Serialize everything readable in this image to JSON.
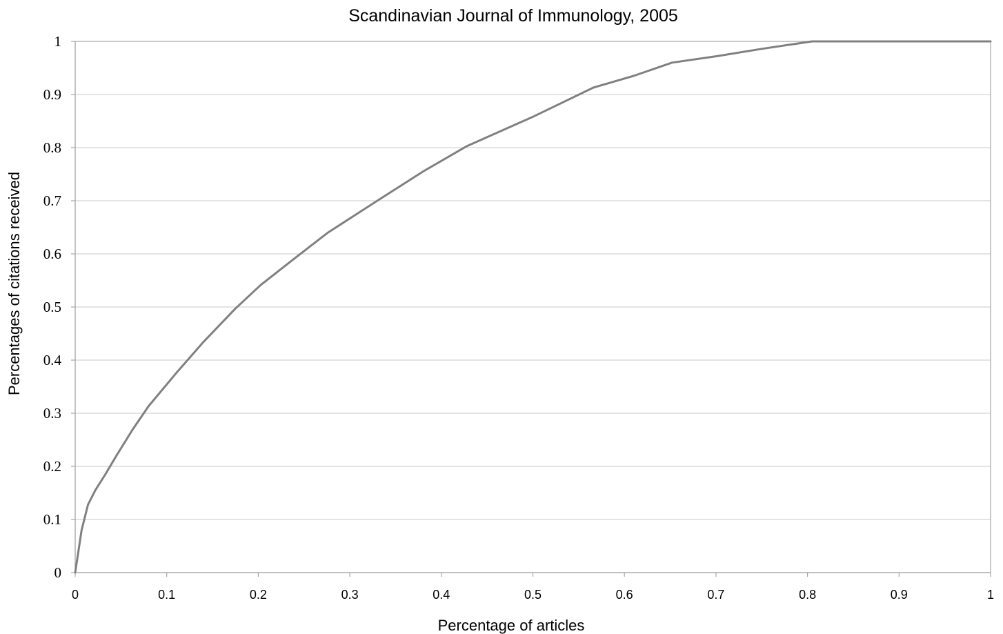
{
  "chart_data": {
    "type": "line",
    "title": "Scandinavian Journal of Immunology, 2005",
    "xlabel": "Percentage of articles",
    "ylabel": "Percentages of citations received",
    "xlim": [
      0,
      1
    ],
    "ylim": [
      0,
      1
    ],
    "x_ticks": [
      "0",
      "0.1",
      "0.2",
      "0.3",
      "0.4",
      "0.5",
      "0.6",
      "0.7",
      "0.8",
      "0.9",
      "1"
    ],
    "y_ticks": [
      "0",
      "0.1",
      "0.2",
      "0.3",
      "0.4",
      "0.5",
      "0.6",
      "0.7",
      "0.8",
      "0.9",
      "1"
    ],
    "grid": "horizontal",
    "legend": "none",
    "line_color": "#808080",
    "series": [
      {
        "x": [
          0,
          0.007,
          0.014,
          0.022,
          0.033,
          0.045,
          0.063,
          0.08,
          0.11,
          0.14,
          0.175,
          0.203,
          0.24,
          0.276,
          0.33,
          0.38,
          0.428,
          0.5,
          0.566,
          0.61,
          0.652,
          0.7,
          0.75,
          0.805,
          0.85,
          0.9,
          0.95,
          1.0
        ],
        "values": [
          0,
          0.08,
          0.128,
          0.155,
          0.185,
          0.22,
          0.27,
          0.313,
          0.375,
          0.434,
          0.497,
          0.542,
          0.592,
          0.64,
          0.7,
          0.755,
          0.803,
          0.858,
          0.913,
          0.935,
          0.96,
          0.972,
          0.986,
          1.0,
          1.0,
          1.0,
          1.0,
          1.0
        ]
      }
    ]
  }
}
